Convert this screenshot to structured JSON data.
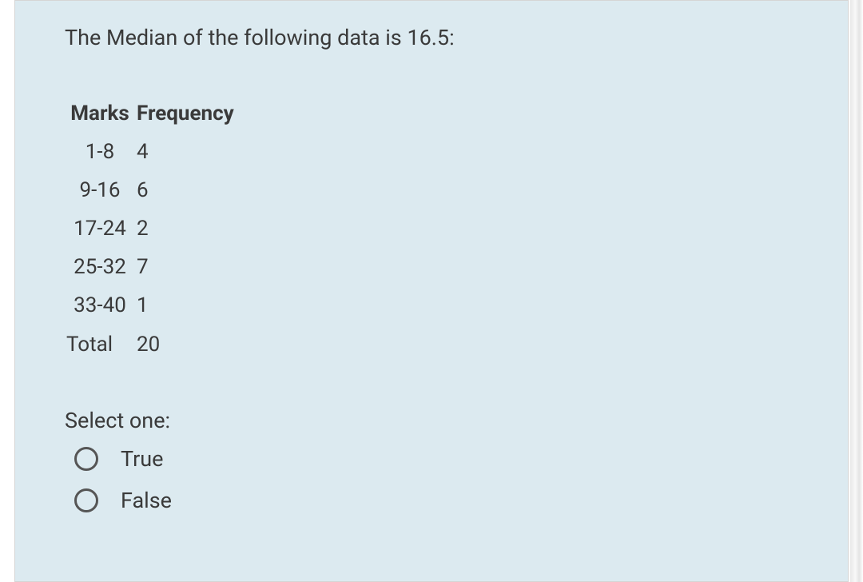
{
  "question": {
    "text": "The Median of the following data is 16.5:"
  },
  "table": {
    "headers": {
      "marks": "Marks",
      "frequency": "Frequency"
    },
    "rows": [
      {
        "marks": "1-8",
        "frequency": "4"
      },
      {
        "marks": "9-16",
        "frequency": "6"
      },
      {
        "marks": "17-24",
        "frequency": "2"
      },
      {
        "marks": "25-32",
        "frequency": "7"
      },
      {
        "marks": "33-40",
        "frequency": "1"
      }
    ],
    "total": {
      "label": "Total",
      "value": "20"
    }
  },
  "select": {
    "label": "Select one:",
    "options": [
      {
        "label": "True"
      },
      {
        "label": "False"
      }
    ]
  },
  "colors": {
    "card_bg": "#dceaf0",
    "text": "#3a3a3a",
    "radio_border": "#555555",
    "card_border": "#d5d5d5"
  }
}
